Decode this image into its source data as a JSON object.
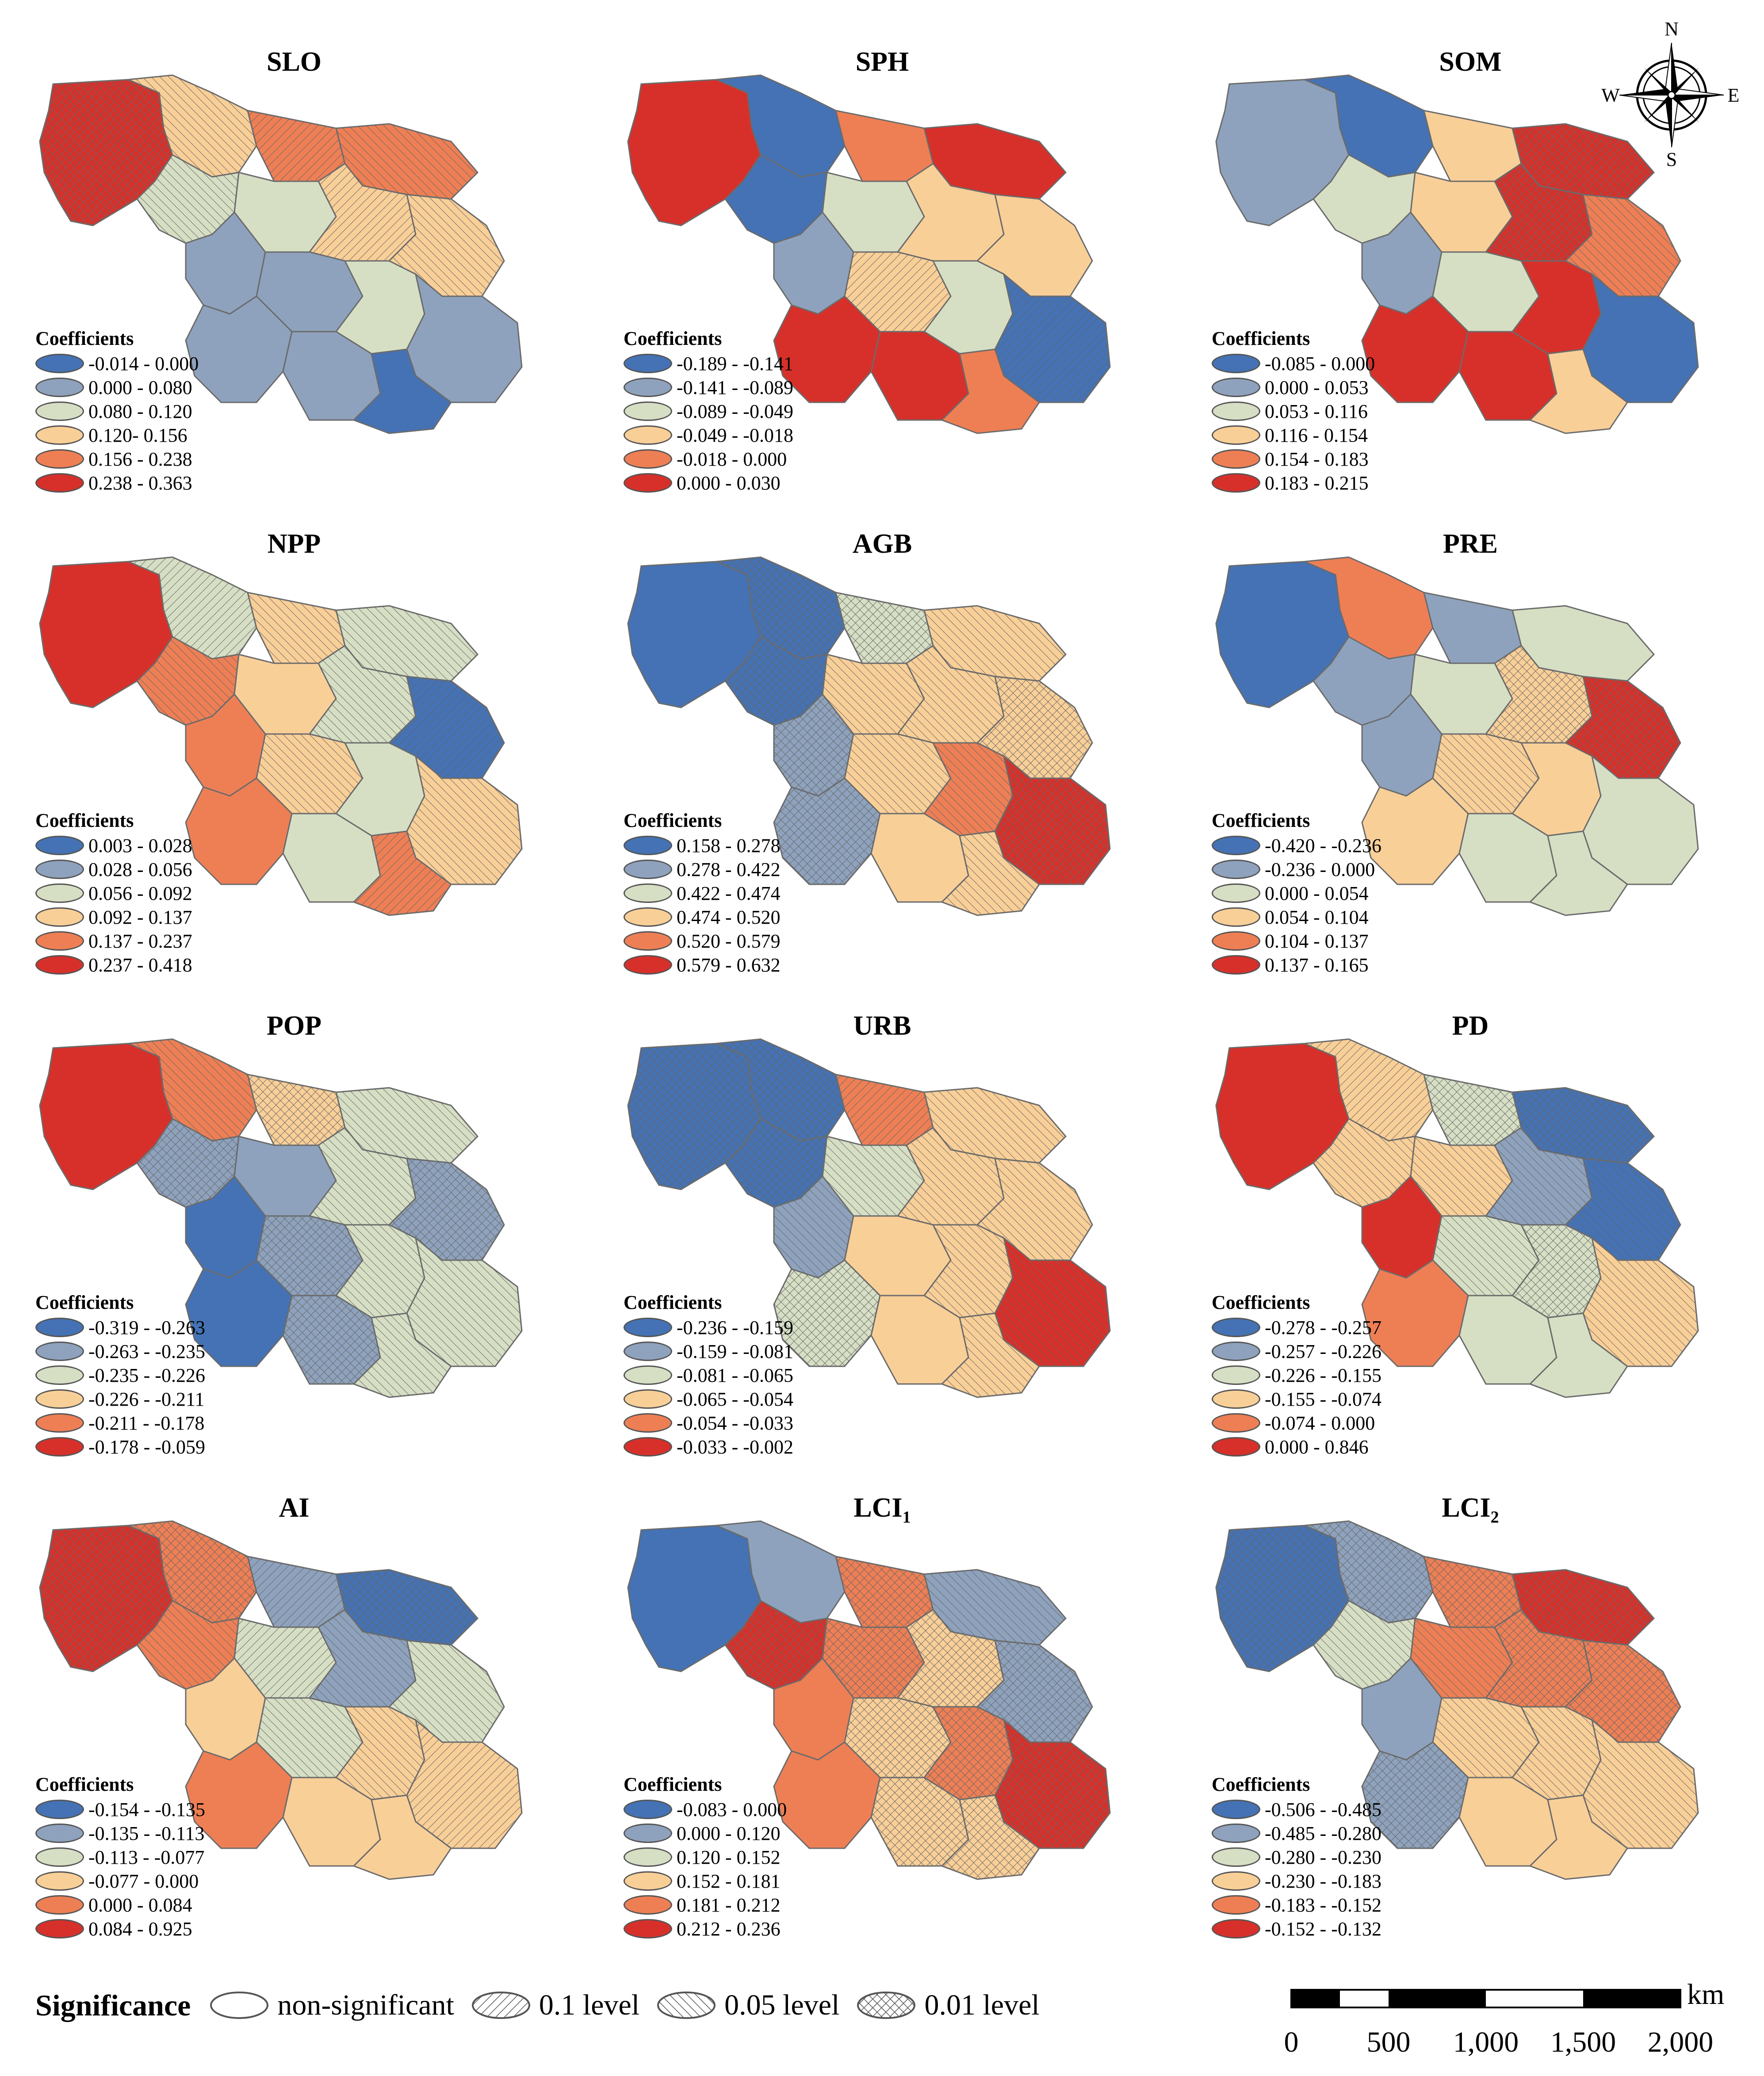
{
  "panels": [
    {
      "title": "SLO",
      "title_sub": "",
      "legend_title": "Coefficients",
      "classes": [
        "-0.014 - 0.000",
        "0.000 - 0.080",
        "0.080 - 0.120",
        "0.120- 0.156",
        "0.156 - 0.238",
        "0.238 - 0.363"
      ]
    },
    {
      "title": "SPH",
      "title_sub": "",
      "legend_title": "Coefficients",
      "classes": [
        "-0.189 - -0.141",
        "-0.141 - -0.089",
        "-0.089 - -0.049",
        "-0.049 - -0.018",
        "-0.018 - 0.000",
        "0.000 - 0.030"
      ]
    },
    {
      "title": "SOM",
      "title_sub": "",
      "legend_title": "Coefficients",
      "classes": [
        "-0.085 - 0.000",
        "0.000 - 0.053",
        "0.053 - 0.116",
        "0.116 - 0.154",
        "0.154 - 0.183",
        "0.183 - 0.215"
      ]
    },
    {
      "title": "NPP",
      "title_sub": "",
      "legend_title": "Coefficients",
      "classes": [
        "0.003 - 0.028",
        "0.028 - 0.056",
        "0.056 - 0.092",
        "0.092 - 0.137",
        "0.137 - 0.237",
        "0.237 - 0.418"
      ]
    },
    {
      "title": "AGB",
      "title_sub": "",
      "legend_title": "Coefficients",
      "classes": [
        "0.158 - 0.278",
        "0.278 - 0.422",
        "0.422 - 0.474",
        "0.474 - 0.520",
        "0.520 - 0.579",
        "0.579 - 0.632"
      ]
    },
    {
      "title": "PRE",
      "title_sub": "",
      "legend_title": "Coefficients",
      "classes": [
        "-0.420 - -0.236",
        "-0.236 - 0.000",
        "0.000 - 0.054",
        "0.054 - 0.104",
        "0.104 - 0.137",
        "0.137 - 0.165"
      ]
    },
    {
      "title": "POP",
      "title_sub": "",
      "legend_title": "Coefficients",
      "classes": [
        "-0.319 - -0.263",
        "-0.263 - -0.235",
        "-0.235 - -0.226",
        "-0.226 - -0.211",
        "-0.211 - -0.178",
        "-0.178 - -0.059"
      ]
    },
    {
      "title": "URB",
      "title_sub": "",
      "legend_title": "Coefficients",
      "classes": [
        "-0.236 - -0.159",
        "-0.159 - -0.081",
        "-0.081 - -0.065",
        "-0.065 - -0.054",
        "-0.054 - -0.033",
        "-0.033 - -0.002"
      ]
    },
    {
      "title": "PD",
      "title_sub": "",
      "legend_title": "Coefficients",
      "classes": [
        "-0.278 - -0.257",
        "-0.257 - -0.226",
        "-0.226 - -0.155",
        "-0.155 - -0.074",
        "-0.074 - 0.000",
        "0.000 - 0.846"
      ]
    },
    {
      "title": "AI",
      "title_sub": "",
      "legend_title": "Coefficients",
      "classes": [
        "-0.154 - -0.135",
        "-0.135 - -0.113",
        "-0.113 - -0.077",
        "-0.077 - 0.000",
        "0.000 - 0.084",
        "0.084 - 0.925"
      ]
    },
    {
      "title": "LCI",
      "title_sub": "1",
      "legend_title": "Coefficients",
      "classes": [
        "-0.083 - 0.000",
        "0.000 - 0.120",
        "0.120 - 0.152",
        "0.152 - 0.181",
        "0.181 - 0.212",
        "0.212 - 0.236"
      ]
    },
    {
      "title": "LCI",
      "title_sub": "2",
      "legend_title": "Coefficients",
      "classes": [
        "-0.506 - -0.485",
        "-0.485 - -0.280",
        "-0.280 - -0.230",
        "-0.230 - -0.183",
        "-0.183 - -0.152",
        "-0.152 - -0.132"
      ]
    }
  ],
  "class_colors": [
    "#4472b4",
    "#8ea2bd",
    "#d6dfc4",
    "#f9cf98",
    "#ee7f55",
    "#d7302a"
  ],
  "compass": {
    "n": "N",
    "s": "S",
    "e": "E",
    "w": "W"
  },
  "significance": {
    "title": "Significance",
    "items": [
      {
        "label": "non-significant",
        "pattern": "none"
      },
      {
        "label": "0.1 level",
        "pattern": "back-diagonal"
      },
      {
        "label": "0.05 level",
        "pattern": "forward-diagonal"
      },
      {
        "label": "0.01 level",
        "pattern": "crosshatch"
      }
    ]
  },
  "scalebar": {
    "unit": "km",
    "ticks": [
      "0",
      "500",
      "1,000",
      "1,500",
      "2,000"
    ]
  }
}
